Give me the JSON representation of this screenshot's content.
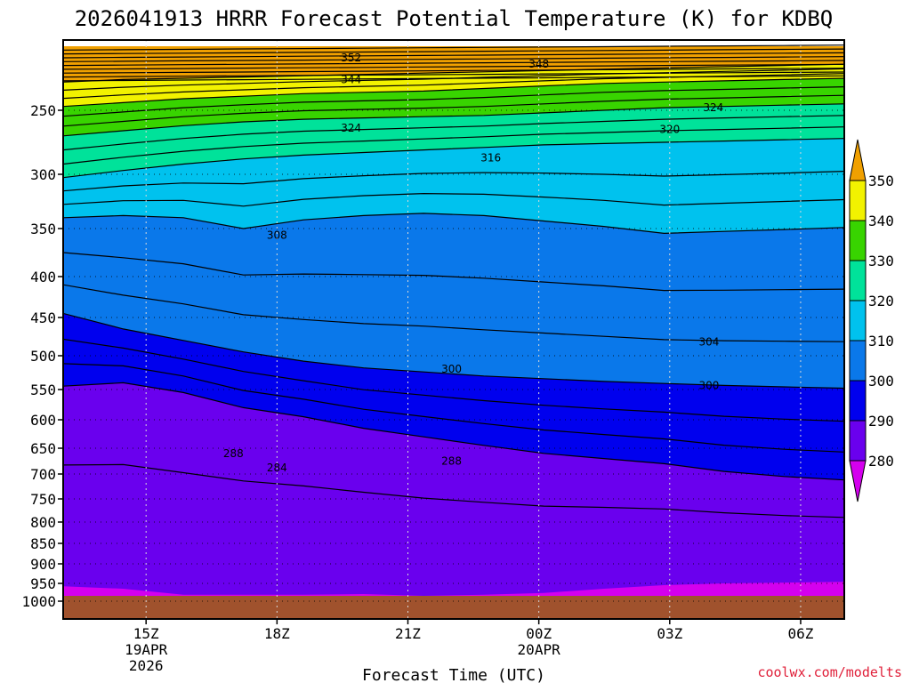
{
  "chart_data": {
    "type": "heatmap",
    "title": "2026041913 HRRR Forecast Potential Temperature (K) for KDBQ",
    "xlabel": "Forecast Time (UTC)",
    "credit": "coolwx.com/modelts",
    "y_axis": {
      "ticks": [
        "250",
        "300",
        "350",
        "400",
        "450",
        "500",
        "550",
        "600",
        "650",
        "700",
        "750",
        "800",
        "850",
        "900",
        "950",
        "1000"
      ],
      "ylim": [
        1000,
        200
      ],
      "gridlines": "dotted"
    },
    "x_axis": {
      "ticks": [
        {
          "label": "15Z",
          "sub1": "19APR",
          "sub2": "2026"
        },
        {
          "label": "18Z",
          "sub1": "",
          "sub2": ""
        },
        {
          "label": "21Z",
          "sub1": "",
          "sub2": ""
        },
        {
          "label": "00Z",
          "sub1": "20APR",
          "sub2": ""
        },
        {
          "label": "03Z",
          "sub1": "",
          "sub2": ""
        },
        {
          "label": "06Z",
          "sub1": "",
          "sub2": ""
        }
      ],
      "x_hours": [
        15,
        18,
        21,
        24,
        27,
        30
      ],
      "xlim": [
        13.1,
        31.0
      ],
      "gridlines": "dotted"
    },
    "colorbar": {
      "labels": [
        "350",
        "340",
        "330",
        "320",
        "310",
        "300",
        "290",
        "280"
      ],
      "bands": [
        {
          "range": "350+",
          "color": "#f0a000"
        },
        {
          "range": "340-350",
          "color": "#f2f200"
        },
        {
          "range": "330-340",
          "color": "#38d400"
        },
        {
          "range": "320-330",
          "color": "#00e29a"
        },
        {
          "range": "310-320",
          "color": "#00c2ee"
        },
        {
          "range": "300-310",
          "color": "#0a78ea"
        },
        {
          "range": "290-300",
          "color": "#0000ee"
        },
        {
          "range": "280-290",
          "color": "#6a00ee"
        },
        {
          "range": "<280",
          "color": "#d400ee"
        }
      ],
      "extend": "both"
    },
    "filled_layers": [
      {
        "range": "<280",
        "color": "#d400ee",
        "top_hpa": [
          958,
          965,
          982,
          982,
          982,
          980,
          985,
          982,
          977,
          965,
          955,
          950,
          948,
          946
        ]
      },
      {
        "range": "280-290",
        "color": "#6a00ee",
        "top_hpa": [
          545,
          540,
          555,
          580,
          595,
          615,
          630,
          645,
          660,
          670,
          680,
          695,
          705,
          712
        ]
      },
      {
        "range": "290-300",
        "color": "#0000ee",
        "top_hpa": [
          445,
          465,
          480,
          495,
          508,
          518,
          524,
          530,
          534,
          538,
          541,
          544,
          546,
          548
        ]
      },
      {
        "range": "300-310",
        "color": "#0a78ea",
        "top_hpa": [
          340,
          338,
          340,
          350,
          342,
          338,
          336,
          338,
          343,
          348,
          355,
          353,
          351,
          349
        ]
      },
      {
        "range": "310-320",
        "color": "#00c2ee",
        "top_hpa": [
          303,
          297,
          292,
          288,
          285,
          283,
          281,
          279,
          277,
          276,
          275,
          274,
          273,
          272
        ]
      },
      {
        "range": "320-330",
        "color": "#00e29a",
        "top_hpa": [
          270,
          266,
          262,
          259,
          257,
          256,
          255,
          254,
          252,
          250,
          248,
          247,
          246,
          245
        ]
      },
      {
        "range": "330-340",
        "color": "#38d400",
        "top_hpa": [
          247,
          244,
          241,
          239,
          237,
          236,
          235,
          233,
          231,
          229,
          228,
          227,
          226,
          225
        ]
      },
      {
        "range": "340-350",
        "color": "#f2f200",
        "top_hpa": [
          228,
          226,
          225,
          224,
          223,
          222,
          221,
          220,
          219,
          218,
          217,
          216,
          215,
          214
        ]
      },
      {
        "range": "350+",
        "color": "#f0a000",
        "top_hpa": [
          200,
          200,
          200,
          200,
          200,
          200,
          200,
          200,
          200,
          200,
          200,
          200,
          200,
          200
        ]
      }
    ],
    "surface_pressure_hpa": 985,
    "surface_color": "#a0522d",
    "contour_labels": [
      {
        "text": "352",
        "x_hour": 19.7,
        "p": 209
      },
      {
        "text": "348",
        "x_hour": 24.0,
        "p": 214
      },
      {
        "text": "344",
        "x_hour": 19.7,
        "p": 226
      },
      {
        "text": "324",
        "x_hour": 28.0,
        "p": 248
      },
      {
        "text": "324",
        "x_hour": 19.7,
        "p": 264
      },
      {
        "text": "320",
        "x_hour": 27.0,
        "p": 265
      },
      {
        "text": "316",
        "x_hour": 22.9,
        "p": 287
      },
      {
        "text": "308",
        "x_hour": 18.0,
        "p": 357
      },
      {
        "text": "304",
        "x_hour": 27.9,
        "p": 482
      },
      {
        "text": "300",
        "x_hour": 22.0,
        "p": 520
      },
      {
        "text": "300",
        "x_hour": 27.9,
        "p": 544
      },
      {
        "text": "288",
        "x_hour": 17.0,
        "p": 660
      },
      {
        "text": "288",
        "x_hour": 22.0,
        "p": 675
      },
      {
        "text": "284",
        "x_hour": 18.0,
        "p": 688
      }
    ]
  }
}
